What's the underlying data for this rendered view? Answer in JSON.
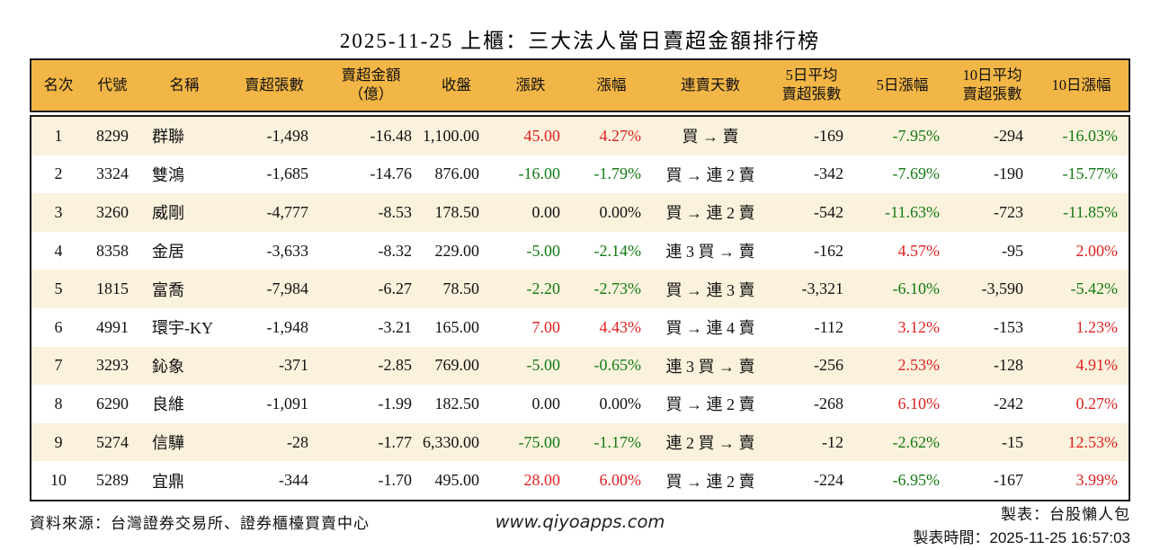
{
  "title": "2025-11-25 上櫃：三大法人當日賣超金額排行榜",
  "colors": {
    "up_red": "#dd2222",
    "down_green": "#127a12",
    "header_bg": "#f2b646",
    "row_alt_bg": "#fbf2dd",
    "border": "#1a1a1a"
  },
  "chart_data": {
    "type": "table",
    "title": "2025-11-25 上櫃：三大法人當日賣超金額排行榜",
    "columns": [
      "名次",
      "代號",
      "名稱",
      "賣超張數",
      "賣超金額\n（億）",
      "收盤",
      "漲跌",
      "漲幅",
      "連賣天數",
      "5日平均\n賣超張數",
      "5日漲幅",
      "10日平均\n賣超張數",
      "10日漲幅"
    ],
    "align": [
      "c",
      "c",
      "l",
      "r",
      "r",
      "r",
      "r",
      "r",
      "c",
      "r",
      "r",
      "r",
      "r"
    ],
    "rows": [
      {
        "cells": [
          "1",
          "8299",
          "群聯",
          "-1,498",
          "-16.48",
          "1,100.00",
          "45.00",
          "4.27%",
          "買 → 賣",
          "-169",
          "-7.95%",
          "-294",
          "-16.03%"
        ],
        "colors": {
          "6": "up",
          "7": "up",
          "10": "down",
          "12": "down"
        }
      },
      {
        "cells": [
          "2",
          "3324",
          "雙鴻",
          "-1,685",
          "-14.76",
          "876.00",
          "-16.00",
          "-1.79%",
          "買 → 連 2 賣",
          "-342",
          "-7.69%",
          "-190",
          "-15.77%"
        ],
        "colors": {
          "6": "down",
          "7": "down",
          "10": "down",
          "12": "down"
        }
      },
      {
        "cells": [
          "3",
          "3260",
          "威剛",
          "-4,777",
          "-8.53",
          "178.50",
          "0.00",
          "0.00%",
          "買 → 連 2 賣",
          "-542",
          "-11.63%",
          "-723",
          "-11.85%"
        ],
        "colors": {
          "10": "down",
          "12": "down"
        }
      },
      {
        "cells": [
          "4",
          "8358",
          "金居",
          "-3,633",
          "-8.32",
          "229.00",
          "-5.00",
          "-2.14%",
          "連 3 買 → 賣",
          "-162",
          "4.57%",
          "-95",
          "2.00%"
        ],
        "colors": {
          "6": "down",
          "7": "down",
          "10": "up",
          "12": "up"
        }
      },
      {
        "cells": [
          "5",
          "1815",
          "富喬",
          "-7,984",
          "-6.27",
          "78.50",
          "-2.20",
          "-2.73%",
          "買 → 連 3 賣",
          "-3,321",
          "-6.10%",
          "-3,590",
          "-5.42%"
        ],
        "colors": {
          "6": "down",
          "7": "down",
          "10": "down",
          "12": "down"
        }
      },
      {
        "cells": [
          "6",
          "4991",
          "環宇-KY",
          "-1,948",
          "-3.21",
          "165.00",
          "7.00",
          "4.43%",
          "買 → 連 4 賣",
          "-112",
          "3.12%",
          "-153",
          "1.23%"
        ],
        "colors": {
          "6": "up",
          "7": "up",
          "10": "up",
          "12": "up"
        }
      },
      {
        "cells": [
          "7",
          "3293",
          "鈊象",
          "-371",
          "-2.85",
          "769.00",
          "-5.00",
          "-0.65%",
          "連 3 買 → 賣",
          "-256",
          "2.53%",
          "-128",
          "4.91%"
        ],
        "colors": {
          "6": "down",
          "7": "down",
          "10": "up",
          "12": "up"
        }
      },
      {
        "cells": [
          "8",
          "6290",
          "良維",
          "-1,091",
          "-1.99",
          "182.50",
          "0.00",
          "0.00%",
          "買 → 連 2 賣",
          "-268",
          "6.10%",
          "-242",
          "0.27%"
        ],
        "colors": {
          "10": "up",
          "12": "up"
        }
      },
      {
        "cells": [
          "9",
          "5274",
          "信驊",
          "-28",
          "-1.77",
          "6,330.00",
          "-75.00",
          "-1.17%",
          "連 2 買 → 賣",
          "-12",
          "-2.62%",
          "-15",
          "12.53%"
        ],
        "colors": {
          "6": "down",
          "7": "down",
          "10": "down",
          "12": "up"
        }
      },
      {
        "cells": [
          "10",
          "5289",
          "宜鼎",
          "-344",
          "-1.70",
          "495.00",
          "28.00",
          "6.00%",
          "買 → 連 2 賣",
          "-224",
          "-6.95%",
          "-167",
          "3.99%"
        ],
        "colors": {
          "6": "up",
          "7": "up",
          "10": "down",
          "12": "up"
        }
      }
    ]
  },
  "footer": {
    "source": "資料來源：台灣證券交易所、證券櫃檯買賣中心",
    "website": "www.qiyoapps.com",
    "maker": "製表：台股懶人包",
    "made_time": "製表時間：2025-11-25 16:57:03"
  }
}
